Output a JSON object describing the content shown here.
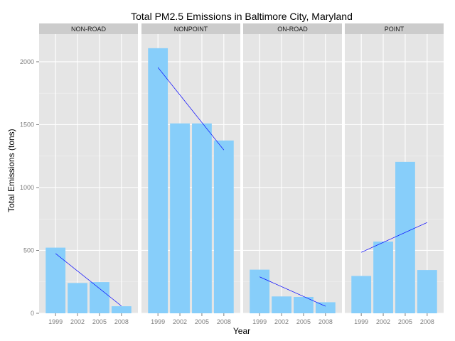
{
  "chart_data": {
    "type": "bar",
    "title": "Total PM2.5 Emissions in Baltimore City, Maryland",
    "xlabel": "Year",
    "ylabel": "Total Emissions (tons)",
    "categories": [
      "1999",
      "2002",
      "2005",
      "2008"
    ],
    "ylim": [
      0,
      2220
    ],
    "yticks": [
      0,
      500,
      1000,
      1500,
      2000
    ],
    "grid": true,
    "bar_color": "#87cefa",
    "trend_color": "#0000ff",
    "panel_color": "#e5e5e5",
    "strip_color": "#cccccc",
    "facets": [
      {
        "name": "NON-ROAD",
        "values": [
          522,
          241,
          248,
          56
        ],
        "trend": [
          475,
          58
        ]
      },
      {
        "name": "NONPOINT",
        "values": [
          2108,
          1510,
          1510,
          1374
        ],
        "trend": [
          1955,
          1298
        ]
      },
      {
        "name": "ON-ROAD",
        "values": [
          347,
          134,
          130,
          88
        ],
        "trend": [
          290,
          56
        ]
      },
      {
        "name": "POINT",
        "values": [
          297,
          570,
          1204,
          344
        ],
        "trend": [
          485,
          722
        ]
      }
    ]
  }
}
